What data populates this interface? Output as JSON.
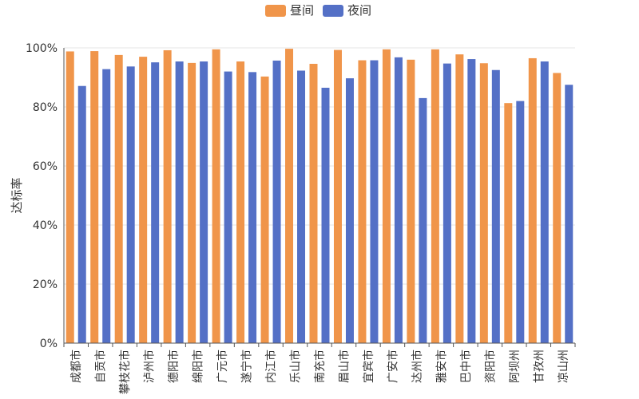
{
  "chart_data": {
    "type": "bar",
    "title": "",
    "xlabel": "",
    "ylabel": "达标率",
    "ylim": [
      0,
      100
    ],
    "yticks": [
      "0%",
      "20%",
      "40%",
      "60%",
      "80%",
      "100%"
    ],
    "legend_position": "top-center",
    "grid": true,
    "categories": [
      "成都市",
      "自贡市",
      "攀枝花市",
      "泸州市",
      "德阳市",
      "绵阳市",
      "广元市",
      "遂宁市",
      "内江市",
      "乐山市",
      "南充市",
      "眉山市",
      "宜宾市",
      "广安市",
      "达州市",
      "雅安市",
      "巴中市",
      "资阳市",
      "阿坝州",
      "甘孜州",
      "凉山州"
    ],
    "series": [
      {
        "name": "昼间",
        "color": "#f0954a",
        "values": [
          98.8,
          98.9,
          97.6,
          97.0,
          99.2,
          94.9,
          99.5,
          95.4,
          90.3,
          99.7,
          94.6,
          99.3,
          95.8,
          99.5,
          96.0,
          99.5,
          97.8,
          94.8,
          81.3,
          96.5,
          91.5
        ]
      },
      {
        "name": "夜间",
        "color": "#5470c6",
        "values": [
          87.1,
          92.8,
          93.7,
          95.1,
          95.4,
          95.4,
          92.0,
          91.8,
          95.7,
          92.3,
          86.5,
          89.7,
          95.8,
          96.8,
          83.0,
          94.7,
          96.2,
          92.5,
          82.0,
          95.4,
          87.5
        ]
      }
    ]
  }
}
